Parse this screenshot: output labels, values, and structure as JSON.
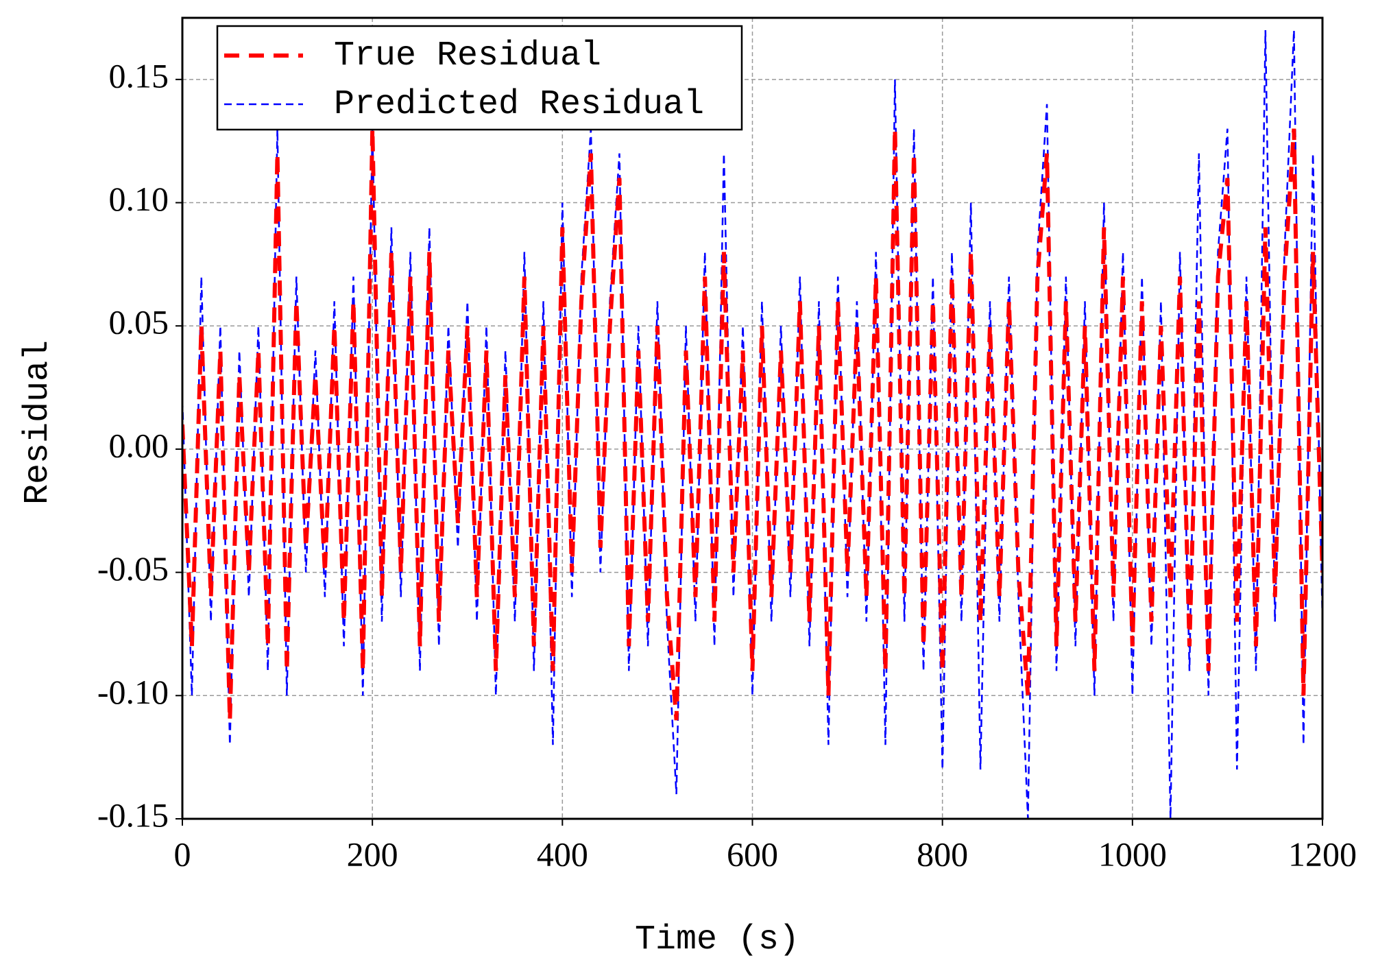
{
  "chart_data": {
    "type": "line",
    "xlabel": "Time (s)",
    "ylabel": "Residual",
    "x": [
      0,
      10,
      20,
      30,
      40,
      50,
      60,
      70,
      80,
      90,
      100,
      110,
      120,
      130,
      140,
      150,
      160,
      170,
      180,
      190,
      200,
      210,
      220,
      230,
      240,
      250,
      260,
      270,
      280,
      290,
      300,
      310,
      320,
      330,
      340,
      350,
      360,
      370,
      380,
      390,
      400,
      410,
      420,
      430,
      440,
      450,
      460,
      470,
      480,
      490,
      500,
      510,
      520,
      530,
      540,
      550,
      560,
      570,
      580,
      590,
      600,
      610,
      620,
      630,
      640,
      650,
      660,
      670,
      680,
      690,
      700,
      710,
      720,
      730,
      740,
      750,
      760,
      770,
      780,
      790,
      800,
      810,
      820,
      830,
      840,
      850,
      860,
      870,
      880,
      890,
      900,
      910,
      920,
      930,
      940,
      950,
      960,
      970,
      980,
      990,
      1000,
      1010,
      1020,
      1030,
      1040,
      1050,
      1060,
      1070,
      1080,
      1090,
      1100,
      1110,
      1120,
      1130,
      1140,
      1150,
      1160,
      1170,
      1180,
      1190,
      1200
    ],
    "series": [
      {
        "name": "True Residual",
        "color": "#ff0000",
        "values": [
          0.01,
          -0.08,
          0.05,
          -0.06,
          0.04,
          -0.11,
          0.03,
          -0.05,
          0.04,
          -0.08,
          0.12,
          -0.09,
          0.06,
          -0.04,
          0.03,
          -0.05,
          0.05,
          -0.07,
          0.06,
          -0.09,
          0.13,
          -0.06,
          0.08,
          -0.05,
          0.07,
          -0.08,
          0.08,
          -0.07,
          0.04,
          -0.03,
          0.05,
          -0.06,
          0.04,
          -0.09,
          0.03,
          -0.06,
          0.07,
          -0.08,
          0.05,
          -0.09,
          0.09,
          -0.05,
          0.06,
          0.12,
          -0.04,
          0.05,
          0.11,
          -0.08,
          0.04,
          -0.07,
          0.05,
          -0.06,
          -0.11,
          0.04,
          -0.06,
          0.07,
          -0.07,
          0.08,
          -0.05,
          0.04,
          -0.09,
          0.05,
          -0.06,
          0.04,
          -0.05,
          0.06,
          -0.07,
          0.05,
          -0.1,
          0.06,
          -0.05,
          0.05,
          -0.06,
          0.07,
          -0.09,
          0.13,
          -0.06,
          0.12,
          -0.08,
          0.06,
          -0.09,
          0.07,
          -0.06,
          0.08,
          -0.07,
          0.05,
          -0.06,
          0.06,
          -0.05,
          -0.1,
          0.07,
          0.12,
          -0.08,
          0.06,
          -0.07,
          0.05,
          -0.09,
          0.09,
          -0.06,
          0.07,
          -0.08,
          0.06,
          -0.07,
          0.05,
          -0.06,
          0.07,
          -0.08,
          0.06,
          -0.09,
          0.07,
          0.11,
          -0.07,
          0.06,
          -0.08,
          0.09,
          -0.06,
          0.07,
          0.13,
          -0.1,
          0.08,
          -0.05
        ]
      },
      {
        "name": "Predicted Residual",
        "color": "#0000ff",
        "values": [
          0.02,
          -0.1,
          0.07,
          -0.07,
          0.05,
          -0.12,
          0.04,
          -0.06,
          0.05,
          -0.09,
          0.13,
          -0.1,
          0.07,
          -0.05,
          0.04,
          -0.06,
          0.06,
          -0.08,
          0.07,
          -0.1,
          0.13,
          -0.07,
          0.09,
          -0.06,
          0.08,
          -0.09,
          0.09,
          -0.08,
          0.05,
          -0.04,
          0.06,
          -0.07,
          0.05,
          -0.1,
          0.04,
          -0.07,
          0.08,
          -0.09,
          0.06,
          -0.12,
          0.1,
          -0.06,
          0.07,
          0.13,
          -0.05,
          0.06,
          0.12,
          -0.09,
          0.05,
          -0.08,
          0.06,
          -0.07,
          -0.14,
          0.05,
          -0.07,
          0.08,
          -0.08,
          0.12,
          -0.06,
          0.05,
          -0.1,
          0.06,
          -0.07,
          0.05,
          -0.06,
          0.07,
          -0.08,
          0.06,
          -0.12,
          0.07,
          -0.06,
          0.06,
          -0.07,
          0.08,
          -0.12,
          0.15,
          -0.07,
          0.13,
          -0.09,
          0.07,
          -0.13,
          0.08,
          -0.07,
          0.1,
          -0.13,
          0.06,
          -0.07,
          0.07,
          -0.06,
          -0.15,
          0.08,
          0.14,
          -0.09,
          0.07,
          -0.08,
          0.06,
          -0.1,
          0.1,
          -0.07,
          0.08,
          -0.1,
          0.07,
          -0.08,
          0.06,
          -0.15,
          0.08,
          -0.09,
          0.12,
          -0.1,
          0.08,
          0.13,
          -0.13,
          0.07,
          -0.09,
          0.17,
          -0.07,
          0.08,
          0.17,
          -0.12,
          0.12,
          -0.07
        ]
      }
    ],
    "xlim": [
      0,
      1200
    ],
    "xticks": [
      0,
      200,
      400,
      600,
      800,
      1000,
      1200
    ],
    "ylim": [
      -0.15,
      0.175
    ],
    "yticks": [
      -0.15,
      {
        "value": -0.1,
        "label": "-0.10"
      },
      -0.05,
      {
        "value": 0,
        "label": "0.00"
      },
      0.05,
      {
        "value": 0.1,
        "label": "0.10"
      },
      0.15
    ],
    "grid": true,
    "legend": "upper left"
  }
}
